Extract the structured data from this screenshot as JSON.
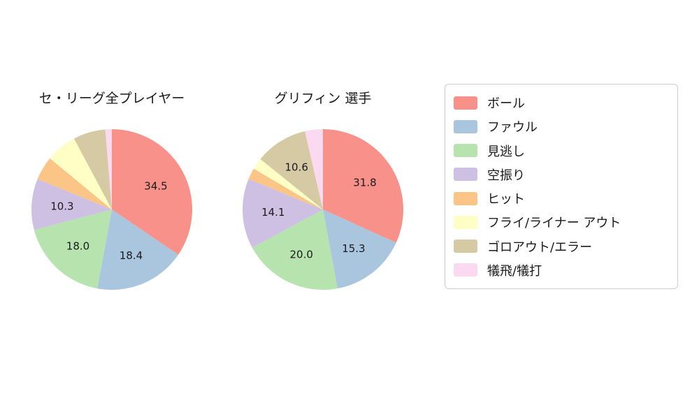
{
  "chart_data": [
    {
      "type": "pie",
      "title": "セ・リーグ全プレイヤー",
      "start_angle_deg": -90,
      "direction": "clockwise",
      "slices": [
        {
          "name": "ボール",
          "value": 34.5,
          "label": "34.5",
          "color": "#F7918A"
        },
        {
          "name": "ファウル",
          "value": 18.4,
          "label": "18.4",
          "color": "#A9C6DE"
        },
        {
          "name": "見逃し",
          "value": 18.0,
          "label": "18.0",
          "color": "#B7E3AE"
        },
        {
          "name": "空振り",
          "value": 10.3,
          "label": "10.3",
          "color": "#CEC0E2"
        },
        {
          "name": "ヒット",
          "value": 4.8,
          "label": "",
          "color": "#FBC588"
        },
        {
          "name": "フライ/ライナー アウト",
          "value": 6.2,
          "label": "",
          "color": "#FFFFC5"
        },
        {
          "name": "ゴロアウト/エラー",
          "value": 6.5,
          "label": "",
          "color": "#D6CAA4"
        },
        {
          "name": "犠飛/犠打",
          "value": 1.3,
          "label": "",
          "color": "#FBD9F0"
        }
      ]
    },
    {
      "type": "pie",
      "title": "グリフィン  選手",
      "start_angle_deg": -90,
      "direction": "clockwise",
      "slices": [
        {
          "name": "ボール",
          "value": 31.8,
          "label": "31.8",
          "color": "#F7918A"
        },
        {
          "name": "ファウル",
          "value": 15.3,
          "label": "15.3",
          "color": "#A9C6DE"
        },
        {
          "name": "見逃し",
          "value": 20.0,
          "label": "20.0",
          "color": "#B7E3AE"
        },
        {
          "name": "空振り",
          "value": 14.1,
          "label": "14.1",
          "color": "#CEC0E2"
        },
        {
          "name": "ヒット",
          "value": 2.3,
          "label": "",
          "color": "#FBC588"
        },
        {
          "name": "フライ/ライナー アウト",
          "value": 2.3,
          "label": "",
          "color": "#FFFFC5"
        },
        {
          "name": "ゴロアウト/エラー",
          "value": 10.6,
          "label": "10.6",
          "color": "#D6CAA4"
        },
        {
          "name": "犠飛/犠打",
          "value": 3.6,
          "label": "",
          "color": "#FBD9F0"
        }
      ]
    }
  ],
  "legend": {
    "items": [
      {
        "label": "ボール",
        "color": "#F7918A"
      },
      {
        "label": "ファウル",
        "color": "#A9C6DE"
      },
      {
        "label": "見逃し",
        "color": "#B7E3AE"
      },
      {
        "label": "空振り",
        "color": "#CEC0E2"
      },
      {
        "label": "ヒット",
        "color": "#FBC588"
      },
      {
        "label": "フライ/ライナー アウト",
        "color": "#FFFFC5"
      },
      {
        "label": "ゴロアウト/エラー",
        "color": "#D6CAA4"
      },
      {
        "label": "犠飛/犠打",
        "color": "#FBD9F0"
      }
    ]
  }
}
